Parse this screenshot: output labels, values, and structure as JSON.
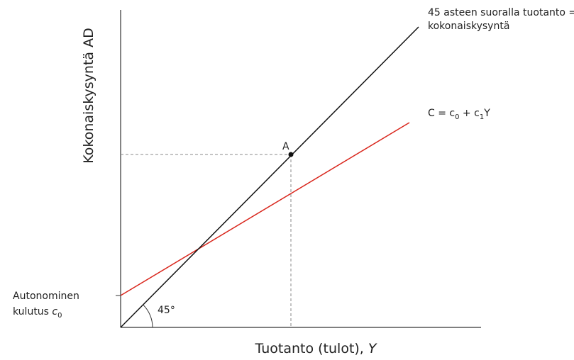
{
  "axes": {
    "y_label": "Kokonaiskysyntä AD",
    "x_label": {
      "text": "Tuotanto (tulot), ",
      "variable": "Y"
    }
  },
  "line_45": {
    "label_lines": [
      "45 asteen suoralla tuotanto =",
      "kokonaiskysyntä"
    ],
    "angle_label": "45°"
  },
  "consumption": {
    "label_parts": [
      "C = c",
      "0",
      " + c",
      "1",
      "Y"
    ]
  },
  "point": {
    "label": "A"
  },
  "intercept": {
    "label_lines": [
      "Autonominen",
      "kulutus "
    ],
    "variable": "c",
    "subscript": "0"
  }
}
